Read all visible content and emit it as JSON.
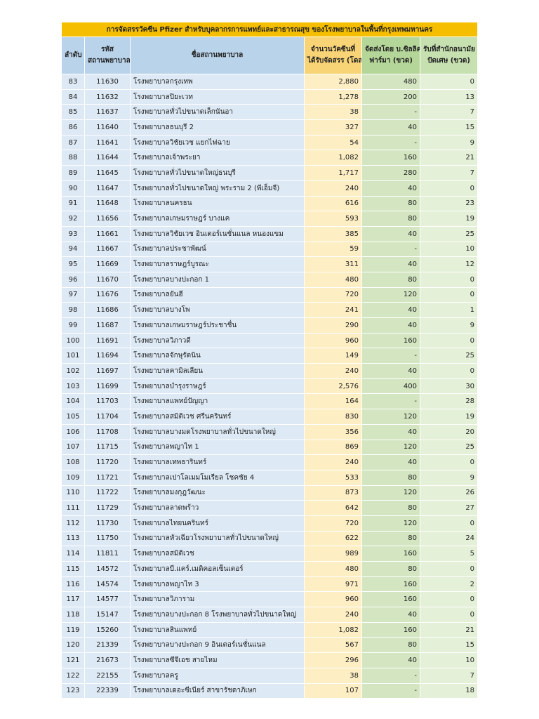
{
  "table": {
    "title": "การจัดสรรวัคซีน Pfizer สำหรับบุคลากรการแพทย์และสาธารณสุข ของโรงพยาบาลในพื้นที่กรุงเทพมหานคร",
    "headers": [
      [
        "ลำดับ"
      ],
      [
        "รหัส",
        "สถานพยาบาล"
      ],
      [
        "ชื่อสถานพยาบาล"
      ],
      [
        "จำนวนวัคซีนที่",
        "ได้รับจัดสรร (โดส)"
      ],
      [
        "จัดส่งโดย บ.ซิลลิค",
        "ฟาร์มา (ขวด)"
      ],
      [
        "รับที่สำนักอนามัย",
        "ปัดเศษ (ขวด)"
      ]
    ],
    "rows": [
      [
        "83",
        "11630",
        "โรงพยาบาลกรุงเทพ",
        "2,880",
        "480",
        "0"
      ],
      [
        "84",
        "11632",
        "โรงพยาบาลปิยะเวท",
        "1,278",
        "200",
        "13"
      ],
      [
        "85",
        "11637",
        "โรงพยาบาลทั่วไปขนาดเล็กนันอา",
        "38",
        "-",
        "7"
      ],
      [
        "86",
        "11640",
        "โรงพยาบาลธนบุรี 2",
        "327",
        "40",
        "15"
      ],
      [
        "87",
        "11641",
        "โรงพยาบาลวิชัยเวช แยกไฟฉาย",
        "54",
        "-",
        "9"
      ],
      [
        "88",
        "11644",
        "โรงพยาบาลเจ้าพระยา",
        "1,082",
        "160",
        "21"
      ],
      [
        "89",
        "11645",
        "โรงพยาบาลทั่วไปขนาดใหญ่ธนบุรี",
        "1,717",
        "280",
        "7"
      ],
      [
        "90",
        "11647",
        "โรงพยาบาลทั่วไปขนาดใหญ่ พระราม 2 (พีเอ็มจี)",
        "240",
        "40",
        "0"
      ],
      [
        "91",
        "11648",
        "โรงพยาบาลนครธน",
        "616",
        "80",
        "23"
      ],
      [
        "92",
        "11656",
        "โรงพยาบาลเกษมราษฎร์ บางแค",
        "593",
        "80",
        "19"
      ],
      [
        "93",
        "11661",
        "โรงพยาบาลวิชัยเวช อินเตอร์เนชั่นแนล หนองแขม",
        "385",
        "40",
        "25"
      ],
      [
        "94",
        "11667",
        "โรงพยาบาลประชาพัฒน์",
        "59",
        "-",
        "10"
      ],
      [
        "95",
        "11669",
        "โรงพยาบาลราษฎร์บูรณะ",
        "311",
        "40",
        "12"
      ],
      [
        "96",
        "11670",
        "โรงพยาบาลบางปะกอก 1",
        "480",
        "80",
        "0"
      ],
      [
        "97",
        "11676",
        "โรงพยาบาลยันฮี",
        "720",
        "120",
        "0"
      ],
      [
        "98",
        "11686",
        "โรงพยาบาลบางโพ",
        "241",
        "40",
        "1"
      ],
      [
        "99",
        "11687",
        "โรงพยาบาลเกษมราษฎร์ประชาชื่น",
        "290",
        "40",
        "9"
      ],
      [
        "100",
        "11691",
        "โรงพยาบาลวิภาวดี",
        "960",
        "160",
        "0"
      ],
      [
        "101",
        "11694",
        "โรงพยาบาลจักษุรัตนิน",
        "149",
        "-",
        "25"
      ],
      [
        "102",
        "11697",
        "โรงพยาบาลคามิลเลียน",
        "240",
        "40",
        "0"
      ],
      [
        "103",
        "11699",
        "โรงพยาบาลบำรุงราษฎร์",
        "2,576",
        "400",
        "30"
      ],
      [
        "104",
        "11703",
        "โรงพยาบาลแพทย์ปัญญา",
        "164",
        "-",
        "28"
      ],
      [
        "105",
        "11704",
        "โรงพยาบาลสมิติเวช ศรีนครินทร์",
        "830",
        "120",
        "19"
      ],
      [
        "106",
        "11708",
        "โรงพยาบาลบางมดโรงพยาบาลทั่วไปขนาดใหญ่",
        "356",
        "40",
        "20"
      ],
      [
        "107",
        "11715",
        "โรงพยาบาลพญาไท 1",
        "869",
        "120",
        "25"
      ],
      [
        "108",
        "11720",
        "โรงพยาบาลเทพธารินทร์",
        "240",
        "40",
        "0"
      ],
      [
        "109",
        "11721",
        "โรงพยาบาลเปาโลเมมโมเรียล โชคชัย 4",
        "533",
        "80",
        "9"
      ],
      [
        "110",
        "11722",
        "โรงพยาบาลมงกุฎวัฒนะ",
        "873",
        "120",
        "26"
      ],
      [
        "111",
        "11729",
        "โรงพยาบาลลาดพร้าว",
        "642",
        "80",
        "27"
      ],
      [
        "112",
        "11730",
        "โรงพยาบาลไทยนครินทร์",
        "720",
        "120",
        "0"
      ],
      [
        "113",
        "11750",
        "โรงพยาบาลหัวเฉียวโรงพยาบาลทั่วไปขนาดใหญ่",
        "622",
        "80",
        "24"
      ],
      [
        "114",
        "11811",
        "โรงพยาบาลสมิติเวช",
        "989",
        "160",
        "5"
      ],
      [
        "115",
        "14572",
        "โรงพยาบาลบี.แคร์.เมดิคอลเซ็นเตอร์",
        "480",
        "80",
        "0"
      ],
      [
        "116",
        "14574",
        "โรงพยาบาลพญาไท 3",
        "971",
        "160",
        "2"
      ],
      [
        "117",
        "14577",
        "โรงพยาบาลวิภาราม",
        "960",
        "160",
        "0"
      ],
      [
        "118",
        "15147",
        "โรงพยาบาลบางปะกอก 8 โรงพยาบาลทั่วไปขนาดใหญ่",
        "240",
        "40",
        "0"
      ],
      [
        "119",
        "15260",
        "โรงพยาบาลสินแพทย์",
        "1,082",
        "160",
        "21"
      ],
      [
        "120",
        "21339",
        "โรงพยาบาลบางปะกอก 9 อินเตอร์เนชั่นแนล",
        "567",
        "80",
        "15"
      ],
      [
        "121",
        "21673",
        "โรงพยาบาลซีจีเอช สายไหม",
        "296",
        "40",
        "10"
      ],
      [
        "122",
        "22155",
        "โรงพยาบาลครู",
        "38",
        "-",
        "7"
      ],
      [
        "123",
        "22339",
        "โรงพยาบาลเดอะซีเนียร์ สาขารัชดาภิเษก",
        "107",
        "-",
        "18"
      ]
    ]
  }
}
